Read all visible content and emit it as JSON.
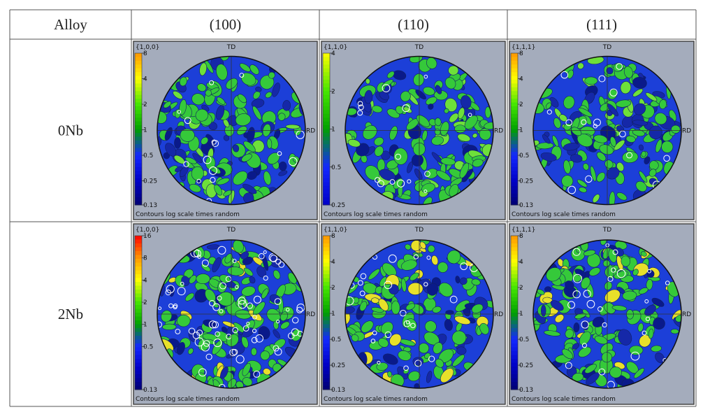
{
  "table": {
    "header": [
      "Alloy",
      "(100)",
      "(110)",
      "(111)"
    ],
    "rows": [
      {
        "alloy": "0Nb",
        "figures": [
          {
            "label": "{1,0,0}",
            "td": "TD",
            "rd": "RD",
            "ticks": [
              8,
              4,
              2,
              1,
              0.5,
              0.25,
              0.13
            ],
            "caption": "Contours log scale times random"
          },
          {
            "label": "{1,1,0}",
            "td": "TD",
            "rd": "RD",
            "ticks": [
              4,
              2,
              1,
              0.5,
              0.25
            ],
            "caption": "Contours log scale times random"
          },
          {
            "label": "{1,1,1}",
            "td": "TD",
            "rd": "RD",
            "ticks": [
              8,
              4,
              2,
              1,
              0.5,
              0.25,
              0.13
            ],
            "caption": "Contours log scale times random"
          }
        ]
      },
      {
        "alloy": "2Nb",
        "figures": [
          {
            "label": "{1,0,0}",
            "td": "TD",
            "rd": "RD",
            "ticks": [
              16,
              8,
              4,
              2,
              1,
              0.5,
              0.13
            ],
            "caption": "Contours log scale times random"
          },
          {
            "label": "{1,1,0}",
            "td": "TD",
            "rd": "RD",
            "ticks": [
              8,
              4,
              2,
              1,
              0.5,
              0.25,
              0.13
            ],
            "caption": "Contours log scale times random"
          },
          {
            "label": "{1,1,1}",
            "td": "TD",
            "rd": "RD",
            "ticks": [
              8,
              4,
              2,
              1,
              0.5,
              0.25,
              0.13
            ],
            "caption": "Contours log scale times random"
          }
        ]
      }
    ]
  }
}
